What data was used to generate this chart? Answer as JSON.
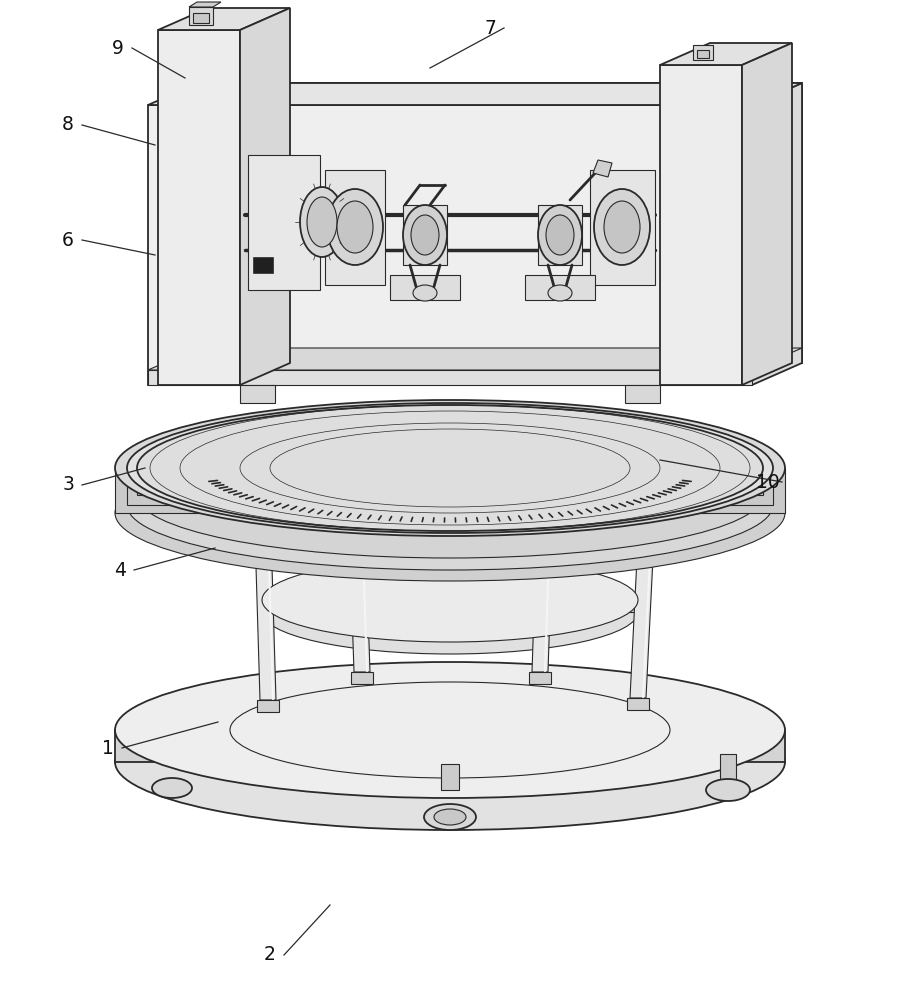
{
  "background_color": "#ffffff",
  "line_color": "#2a2a2a",
  "annotations": [
    [
      "9",
      118,
      48,
      185,
      78
    ],
    [
      "7",
      490,
      28,
      430,
      68
    ],
    [
      "8",
      68,
      125,
      155,
      145
    ],
    [
      "6",
      68,
      240,
      155,
      255
    ],
    [
      "3",
      68,
      485,
      145,
      468
    ],
    [
      "4",
      120,
      570,
      215,
      548
    ],
    [
      "1",
      108,
      748,
      218,
      722
    ],
    [
      "2",
      270,
      955,
      330,
      905
    ],
    [
      "10",
      768,
      482,
      660,
      460
    ]
  ]
}
